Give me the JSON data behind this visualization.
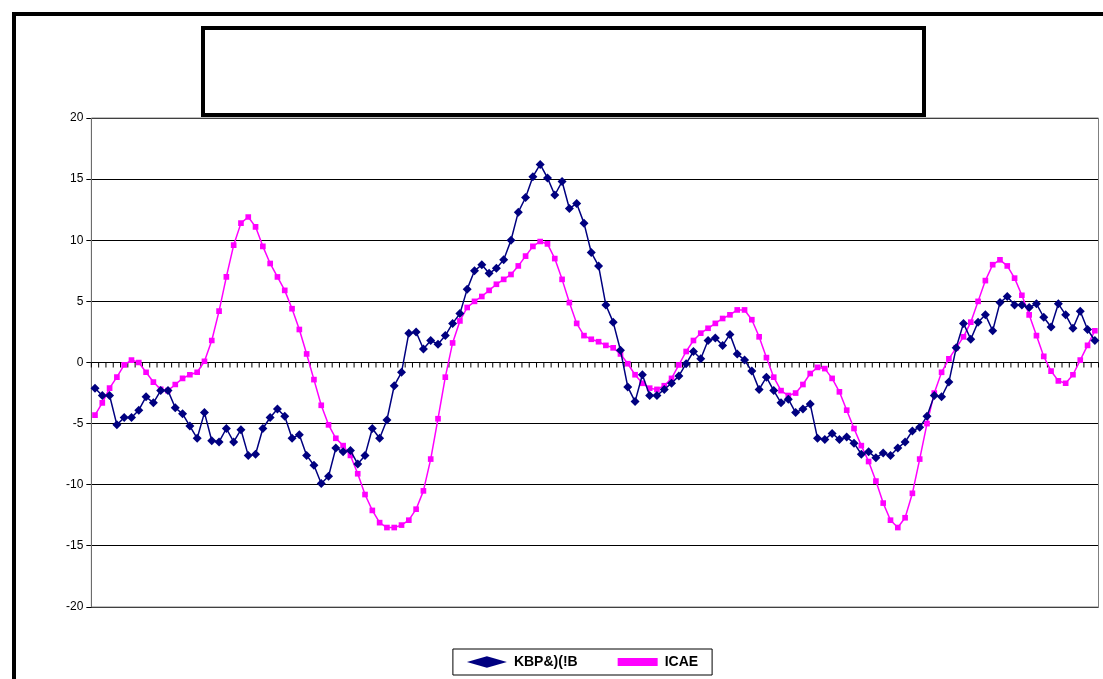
{
  "chart_data": {
    "type": "line",
    "categories": [
      null,
      null,
      null,
      null,
      null,
      null,
      null,
      null,
      null,
      null,
      null,
      null,
      null,
      null,
      null,
      null,
      null,
      null,
      null,
      null,
      null,
      null,
      null,
      null,
      null,
      null,
      null,
      null,
      null,
      null,
      null,
      null,
      null,
      null,
      null,
      null,
      null,
      null,
      null,
      null,
      null,
      null,
      null,
      null,
      null,
      null,
      null,
      null,
      null,
      null,
      null,
      null,
      null,
      null,
      null,
      null,
      null,
      null,
      null,
      null,
      null,
      null,
      null,
      null,
      null,
      null,
      null,
      null,
      null,
      null,
      null,
      null,
      null,
      null,
      null,
      null,
      null,
      null,
      null,
      null,
      null,
      null,
      null,
      null,
      null,
      null,
      null,
      null,
      null,
      null,
      null,
      null,
      null,
      null,
      null,
      null,
      null,
      null,
      null,
      null,
      null,
      null,
      null,
      null,
      null,
      null,
      null,
      null,
      null,
      null,
      null,
      null,
      null,
      null,
      null,
      null,
      null,
      null,
      null,
      null,
      null,
      null,
      null,
      null,
      null,
      null,
      null,
      null,
      null,
      null,
      null,
      null,
      null,
      null,
      null,
      null,
      null,
      null
    ],
    "series": [
      {
        "name": "KBP&)(!B",
        "color": "#000080",
        "marker": "diamond",
        "values": [
          -2.1,
          -2.7,
          -2.7,
          -5.1,
          -4.5,
          -4.5,
          -3.9,
          -2.8,
          -3.3,
          -2.3,
          -2.3,
          -3.7,
          -4.2,
          -5.2,
          -6.2,
          -4.1,
          -6.4,
          -6.5,
          -5.4,
          -6.5,
          -5.5,
          -7.6,
          -7.5,
          -5.4,
          -4.5,
          -3.8,
          -4.4,
          -6.2,
          -5.9,
          -7.6,
          -8.4,
          -9.9,
          -9.3,
          -7.0,
          -7.3,
          -7.2,
          -8.3,
          -7.6,
          -5.4,
          -6.2,
          -4.7,
          -1.9,
          -0.8,
          2.4,
          2.5,
          1.1,
          1.8,
          1.5,
          2.2,
          3.2,
          4.0,
          6.0,
          7.5,
          8.0,
          7.3,
          7.7,
          8.4,
          10.0,
          12.3,
          13.5,
          15.2,
          16.2,
          15.1,
          13.7,
          14.8,
          12.6,
          13.0,
          11.4,
          9.0,
          7.9,
          4.7,
          3.3,
          1.0,
          -2.0,
          -3.2,
          -1.0,
          -2.7,
          -2.7,
          -2.2,
          -1.7,
          -1.1,
          -0.1,
          0.9,
          0.3,
          1.8,
          2.0,
          1.4,
          2.3,
          0.7,
          0.2,
          -0.7,
          -2.2,
          -1.2,
          -2.3,
          -3.3,
          -3.0,
          -4.1,
          -3.8,
          -3.4,
          -6.2,
          -6.3,
          -5.8,
          -6.3,
          -6.1,
          -6.6,
          -7.5,
          -7.3,
          -7.8,
          -7.4,
          -7.6,
          -7.0,
          -6.5,
          -5.6,
          -5.3,
          -4.4,
          -2.7,
          -2.8,
          -1.6,
          1.2,
          3.2,
          1.9,
          3.3,
          3.9,
          2.6,
          4.9,
          5.4,
          4.7,
          4.7,
          4.5,
          4.8,
          3.7,
          2.9,
          4.8,
          3.9,
          2.8,
          4.2,
          2.7,
          1.8
        ]
      },
      {
        "name": "ICAE",
        "color": "#ff00ff",
        "marker": "square",
        "values": [
          -4.3,
          -3.3,
          -2.1,
          -1.2,
          -0.2,
          0.2,
          0.0,
          -0.8,
          -1.6,
          -2.2,
          -2.3,
          -1.8,
          -1.3,
          -1.0,
          -0.8,
          0.1,
          1.8,
          4.2,
          7.0,
          9.6,
          11.4,
          11.9,
          11.1,
          9.5,
          8.1,
          7.0,
          5.9,
          4.4,
          2.7,
          0.7,
          -1.4,
          -3.5,
          -5.1,
          -6.2,
          -6.8,
          -7.6,
          -9.1,
          -10.8,
          -12.1,
          -13.1,
          -13.5,
          -13.5,
          -13.3,
          -12.9,
          -12.0,
          -10.5,
          -7.9,
          -4.6,
          -1.2,
          1.6,
          3.4,
          4.5,
          5.0,
          5.4,
          5.9,
          6.4,
          6.8,
          7.2,
          7.9,
          8.7,
          9.5,
          9.9,
          9.7,
          8.5,
          6.8,
          4.9,
          3.2,
          2.2,
          1.9,
          1.7,
          1.4,
          1.2,
          0.7,
          -0.1,
          -1.0,
          -1.7,
          -2.1,
          -2.2,
          -1.9,
          -1.3,
          -0.2,
          0.9,
          1.8,
          2.4,
          2.8,
          3.2,
          3.6,
          3.9,
          4.3,
          4.3,
          3.5,
          2.1,
          0.4,
          -1.2,
          -2.3,
          -2.7,
          -2.5,
          -1.8,
          -0.9,
          -0.4,
          -0.5,
          -1.3,
          -2.4,
          -3.9,
          -5.4,
          -6.8,
          -8.1,
          -9.7,
          -11.5,
          -12.9,
          -13.5,
          -12.7,
          -10.7,
          -7.9,
          -5.0,
          -2.5,
          -0.8,
          0.3,
          1.2,
          2.1,
          3.3,
          5.0,
          6.7,
          8.0,
          8.4,
          7.9,
          6.9,
          5.5,
          3.9,
          2.2,
          0.5,
          -0.7,
          -1.5,
          -1.7,
          -1.0,
          0.2,
          1.4,
          2.6
        ]
      }
    ],
    "ylim": [
      -20,
      20
    ],
    "yticks": [
      -20,
      -15,
      -10,
      -5,
      0,
      5,
      10,
      15,
      20
    ],
    "grid": "y",
    "legend": "bottom",
    "line_style": "solid"
  }
}
